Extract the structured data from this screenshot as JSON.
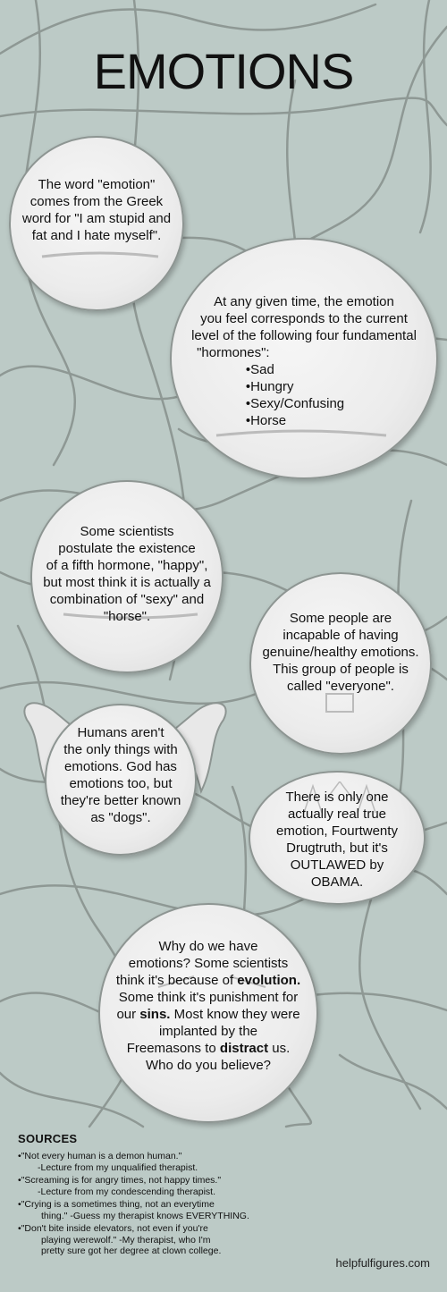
{
  "title": "EMOTIONS",
  "bubbles": {
    "b1": [
      "The word \"emotion\"",
      "comes from the Greek",
      "word for \"I am stupid and",
      "fat and I hate myself\"."
    ],
    "b2": {
      "lines": [
        "At any given time, the emotion",
        "you feel corresponds to the current",
        "level of the following four fundamental",
        "\"hormones\":"
      ],
      "items": [
        "Sad",
        "Hungry",
        "Sexy/Confusing",
        "Horse"
      ]
    },
    "b3": [
      "Some scientists",
      "postulate the existence",
      "of a fifth hormone, \"happy\",",
      "but most think it is actually a",
      "combination of \"sexy\" and",
      "\"horse\"."
    ],
    "b4": [
      "Some people are",
      "incapable of having",
      "genuine/healthy emotions.",
      "This group of people is",
      "called \"everyone\"."
    ],
    "b5": [
      "Humans aren't",
      "the only things with",
      "emotions. God has",
      "emotions too, but",
      "they're better known",
      "as \"dogs\"."
    ],
    "b6": [
      "There is only one",
      "actually real true",
      "emotion, Fourtwenty",
      "Drugtruth, but it's",
      "OUTLAWED by",
      "OBAMA."
    ],
    "b7": {
      "l1": "Why do we have",
      "l2": "emotions? Some scientists",
      "l3a": "think it's because of ",
      "l3b": "evolution.",
      "l4": "Some think it's punishment for",
      "l5a": "our ",
      "l5b": "sins.",
      "l5c": " Most know they were",
      "l6": "implanted by the",
      "l7a": "Freemasons to ",
      "l7b": "distract",
      "l7c": " us.",
      "l8": "Who do you believe?"
    }
  },
  "sources": {
    "heading": "SOURCES",
    "items": [
      {
        "quote": "\"Not every human is a demon human.\"",
        "attr": "-Lecture from my unqualified therapist."
      },
      {
        "quote": "\"Screaming is for angry times, not happy times.\"",
        "attr": "-Lecture from my condescending therapist."
      },
      {
        "quote": "\"Crying is a sometimes thing, not an everytime",
        "attr": "thing.\" -Guess my therapist knows EVERYTHING."
      },
      {
        "quote": "\"Don't bite inside elevators, not even if you're",
        "attr": "playing werewolf.\" -My therapist, who I'm",
        "attr2": "pretty sure got her degree at clown college."
      }
    ]
  },
  "site": "helpfulfigures.com"
}
